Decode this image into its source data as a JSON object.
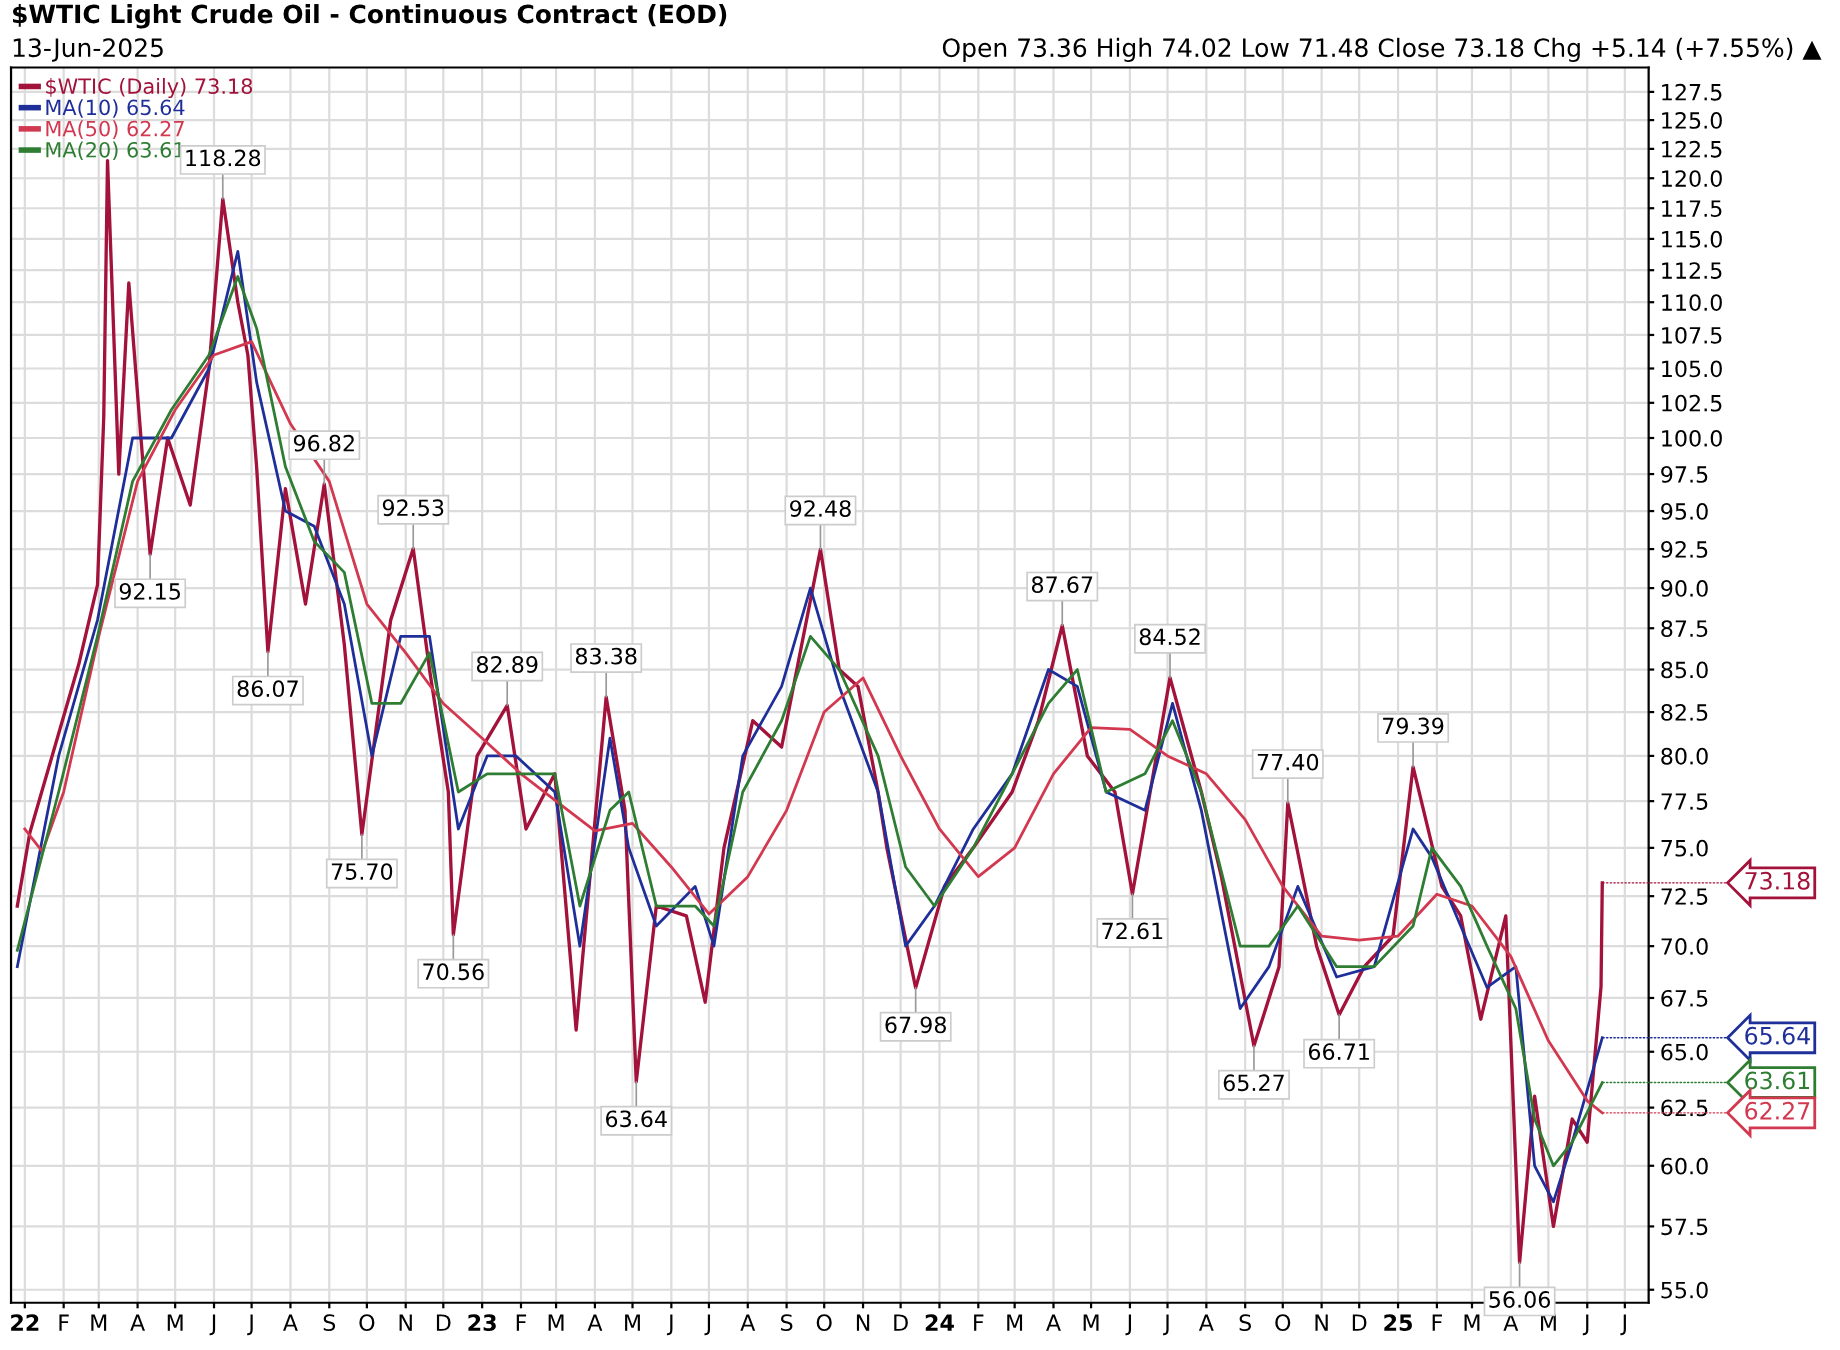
{
  "chart_data": {
    "type": "line",
    "title": "$WTIC Light Crude Oil - Continuous Contract (EOD)",
    "subtitle": "13-Jun-2025",
    "log": "y",
    "grid": true,
    "legend": "top left",
    "marker": "none",
    "line_style": "solid",
    "xlim": [
      "2021-12-21",
      "2025-07-20"
    ],
    "ylim": [
      54.5,
      129.7
    ],
    "yticks": [
      {
        "value": 55,
        "label": "55.0"
      },
      {
        "value": 57.5,
        "label": "57.5"
      },
      {
        "value": 60,
        "label": "60.0"
      },
      {
        "value": 62.5,
        "label": "62.5"
      },
      {
        "value": 65,
        "label": "65.0"
      },
      {
        "value": 67.5,
        "label": "67.5"
      },
      {
        "value": 70,
        "label": "70.0"
      },
      {
        "value": 72.5,
        "label": "72.5"
      },
      {
        "value": 75,
        "label": "75.0"
      },
      {
        "value": 77.5,
        "label": "77.5"
      },
      {
        "value": 80,
        "label": "80.0"
      },
      {
        "value": 82.5,
        "label": "82.5"
      },
      {
        "value": 85,
        "label": "85.0"
      },
      {
        "value": 87.5,
        "label": "87.5"
      },
      {
        "value": 90,
        "label": "90.0"
      },
      {
        "value": 92.5,
        "label": "92.5"
      },
      {
        "value": 95,
        "label": "95.0"
      },
      {
        "value": 97.5,
        "label": "97.5"
      },
      {
        "value": 100,
        "label": "100.0"
      },
      {
        "value": 102.5,
        "label": "102.5"
      },
      {
        "value": 105,
        "label": "105.0"
      },
      {
        "value": 107.5,
        "label": "107.5"
      },
      {
        "value": 110,
        "label": "110.0"
      },
      {
        "value": 112.5,
        "label": "112.5"
      },
      {
        "value": 115,
        "label": "115.0"
      },
      {
        "value": 117.5,
        "label": "117.5"
      },
      {
        "value": 120,
        "label": "120.0"
      },
      {
        "value": 122.5,
        "label": "122.5"
      },
      {
        "value": 125,
        "label": "125.0"
      },
      {
        "value": 127.5,
        "label": "127.5"
      }
    ],
    "xticks": [
      {
        "value": "2022-01-01",
        "label": "22"
      },
      {
        "value": "2022-02-01",
        "label": "F"
      },
      {
        "value": "2022-03-01",
        "label": "M"
      },
      {
        "value": "2022-04-01",
        "label": "A"
      },
      {
        "value": "2022-05-01",
        "label": "M"
      },
      {
        "value": "2022-06-01",
        "label": "J"
      },
      {
        "value": "2022-07-01",
        "label": "J"
      },
      {
        "value": "2022-08-01",
        "label": "A"
      },
      {
        "value": "2022-09-01",
        "label": "S"
      },
      {
        "value": "2022-10-01",
        "label": "O"
      },
      {
        "value": "2022-11-01",
        "label": "N"
      },
      {
        "value": "2022-12-01",
        "label": "D"
      },
      {
        "value": "2023-01-01",
        "label": "23"
      },
      {
        "value": "2023-02-01",
        "label": "F"
      },
      {
        "value": "2023-03-01",
        "label": "M"
      },
      {
        "value": "2023-04-01",
        "label": "A"
      },
      {
        "value": "2023-05-01",
        "label": "M"
      },
      {
        "value": "2023-06-01",
        "label": "J"
      },
      {
        "value": "2023-07-01",
        "label": "J"
      },
      {
        "value": "2023-08-01",
        "label": "A"
      },
      {
        "value": "2023-09-01",
        "label": "S"
      },
      {
        "value": "2023-10-01",
        "label": "O"
      },
      {
        "value": "2023-11-01",
        "label": "N"
      },
      {
        "value": "2023-12-01",
        "label": "D"
      },
      {
        "value": "2024-01-01",
        "label": "24"
      },
      {
        "value": "2024-02-01",
        "label": "F"
      },
      {
        "value": "2024-03-01",
        "label": "M"
      },
      {
        "value": "2024-04-01",
        "label": "A"
      },
      {
        "value": "2024-05-01",
        "label": "M"
      },
      {
        "value": "2024-06-01",
        "label": "J"
      },
      {
        "value": "2024-07-01",
        "label": "J"
      },
      {
        "value": "2024-08-01",
        "label": "A"
      },
      {
        "value": "2024-09-01",
        "label": "S"
      },
      {
        "value": "2024-10-01",
        "label": "O"
      },
      {
        "value": "2024-11-01",
        "label": "N"
      },
      {
        "value": "2024-12-01",
        "label": "D"
      },
      {
        "value": "2025-01-01",
        "label": "25"
      },
      {
        "value": "2025-02-01",
        "label": "F"
      },
      {
        "value": "2025-03-01",
        "label": "M"
      },
      {
        "value": "2025-04-01",
        "label": "A"
      },
      {
        "value": "2025-05-01",
        "label": "M"
      },
      {
        "value": "2025-06-01",
        "label": "J"
      },
      {
        "value": "2025-07-01",
        "label": "J"
      }
    ],
    "series": [
      {
        "name": "$WTIC (Daily) 73.18",
        "color": "#a3123a",
        "x": [
          "2021-12-26",
          "2022-01-05",
          "2022-02-13",
          "2022-02-28",
          "2022-03-05",
          "2022-03-08",
          "2022-03-17",
          "2022-03-25",
          "2022-04-11",
          "2022-04-25",
          "2022-05-13",
          "2022-05-28",
          "2022-06-08",
          "2022-06-20",
          "2022-06-28",
          "2022-07-05",
          "2022-07-14",
          "2022-07-28",
          "2022-08-13",
          "2022-08-28",
          "2022-09-13",
          "2022-09-27",
          "2022-10-20",
          "2022-11-07",
          "2022-11-20",
          "2022-12-05",
          "2022-12-09",
          "2022-12-28",
          "2023-01-21",
          "2023-02-05",
          "2023-02-28",
          "2023-03-13",
          "2023-03-17",
          "2023-04-10",
          "2023-04-25",
          "2023-05-04",
          "2023-05-20",
          "2023-06-13",
          "2023-06-28",
          "2023-07-13",
          "2023-08-05",
          "2023-08-28",
          "2023-09-28",
          "2023-10-13",
          "2023-10-28",
          "2023-11-13",
          "2023-11-20",
          "2023-12-13",
          "2024-01-05",
          "2024-01-28",
          "2024-02-28",
          "2024-03-20",
          "2024-04-08",
          "2024-04-28",
          "2024-05-20",
          "2024-06-03",
          "2024-07-03",
          "2024-07-28",
          "2024-08-13",
          "2024-09-08",
          "2024-09-28",
          "2024-10-05",
          "2024-10-28",
          "2024-11-15",
          "2024-12-05",
          "2024-12-28",
          "2025-01-13",
          "2025-02-05",
          "2025-02-20",
          "2025-03-08",
          "2025-03-28",
          "2025-04-05",
          "2025-04-08",
          "2025-04-20",
          "2025-05-05",
          "2025-05-20",
          "2025-06-01",
          "2025-06-12",
          "2025-06-13"
        ],
        "values": [
          72,
          75.8,
          85.3,
          90.2,
          101.5,
          121.5,
          97.5,
          111.5,
          92.15,
          100,
          95.4,
          105,
          118.28,
          110,
          106,
          98,
          86.07,
          96.5,
          89,
          96.82,
          86.5,
          75.7,
          88,
          92.53,
          85,
          78,
          70.56,
          80,
          82.89,
          76,
          79,
          69,
          66,
          83.38,
          77,
          63.64,
          72,
          71.5,
          67.3,
          75,
          82,
          80.5,
          92.48,
          85,
          84,
          78,
          75,
          67.98,
          73,
          75,
          78,
          82,
          87.67,
          80,
          78,
          72.61,
          84.52,
          78,
          73.5,
          65.27,
          69,
          77.4,
          70,
          66.71,
          69,
          70.5,
          79.39,
          73,
          71.5,
          66.5,
          71.5,
          60,
          56.06,
          63,
          57.5,
          62,
          61,
          68.04,
          73.18
        ]
      },
      {
        "name": "MA(10) 65.64",
        "color": "#1f2f9a",
        "x": [
          "2021-12-26",
          "2022-01-28",
          "2022-02-28",
          "2022-03-28",
          "2022-04-28",
          "2022-05-28",
          "2022-06-20",
          "2022-07-05",
          "2022-07-28",
          "2022-08-20",
          "2022-09-13",
          "2022-10-05",
          "2022-10-28",
          "2022-11-20",
          "2022-12-13",
          "2023-01-05",
          "2023-01-28",
          "2023-02-28",
          "2023-03-20",
          "2023-04-13",
          "2023-04-28",
          "2023-05-20",
          "2023-06-20",
          "2023-07-05",
          "2023-07-28",
          "2023-08-28",
          "2023-09-20",
          "2023-10-13",
          "2023-11-13",
          "2023-12-05",
          "2023-12-28",
          "2024-01-28",
          "2024-02-28",
          "2024-03-28",
          "2024-04-20",
          "2024-05-13",
          "2024-06-13",
          "2024-07-05",
          "2024-07-28",
          "2024-08-28",
          "2024-09-20",
          "2024-10-13",
          "2024-11-13",
          "2024-12-13",
          "2025-01-13",
          "2025-01-28",
          "2025-02-20",
          "2025-03-13",
          "2025-04-05",
          "2025-04-20",
          "2025-05-05",
          "2025-05-20",
          "2025-06-13"
        ],
        "values": [
          69,
          80,
          88,
          100,
          100,
          105,
          114,
          104,
          95,
          94,
          89,
          80,
          87,
          87,
          76,
          80,
          80,
          78,
          70,
          81,
          75,
          71,
          73,
          70,
          80,
          84,
          90,
          84,
          78,
          70,
          72,
          76,
          79,
          85,
          84,
          78,
          77,
          83,
          77,
          67,
          69,
          73,
          68.5,
          69,
          76,
          74.5,
          71,
          68,
          69,
          60,
          58.5,
          61,
          65.64
        ]
      },
      {
        "name": "MA(50) 62.27",
        "color": "#d2384f",
        "x": [
          "2022-01-01",
          "2022-01-15",
          "2022-02-01",
          "2022-03-01",
          "2022-04-01",
          "2022-05-01",
          "2022-06-01",
          "2022-07-01",
          "2022-08-01",
          "2022-09-01",
          "2022-10-01",
          "2022-11-01",
          "2022-12-01",
          "2023-01-01",
          "2023-02-01",
          "2023-03-01",
          "2023-04-01",
          "2023-05-01",
          "2023-06-01",
          "2023-07-01",
          "2023-08-01",
          "2023-09-01",
          "2023-10-01",
          "2023-11-01",
          "2023-12-01",
          "2024-01-01",
          "2024-02-01",
          "2024-03-01",
          "2024-04-01",
          "2024-05-01",
          "2024-06-01",
          "2024-07-01",
          "2024-08-01",
          "2024-09-01",
          "2024-10-01",
          "2024-11-01",
          "2024-12-01",
          "2025-01-01",
          "2025-02-01",
          "2025-03-01",
          "2025-04-01",
          "2025-05-01",
          "2025-06-01",
          "2025-06-13"
        ],
        "values": [
          76,
          74.8,
          78,
          87,
          97,
          102,
          106,
          107,
          101,
          97,
          89,
          86,
          83,
          81,
          79,
          77.5,
          75.9,
          76.3,
          74,
          71.6,
          73.5,
          77,
          82.5,
          84.5,
          80,
          76,
          73.5,
          75,
          79,
          81.6,
          81.5,
          80,
          79,
          76.5,
          73,
          70.5,
          70.3,
          70.5,
          72.6,
          72,
          69.5,
          65.5,
          62.8,
          62.27
        ]
      },
      {
        "name": "MA(20) 63.61",
        "color": "#2e7d32",
        "x": [
          "2021-12-26",
          "2022-01-28",
          "2022-02-28",
          "2022-03-28",
          "2022-04-28",
          "2022-05-28",
          "2022-06-20",
          "2022-07-05",
          "2022-07-28",
          "2022-08-20",
          "2022-09-13",
          "2022-10-05",
          "2022-10-28",
          "2022-11-20",
          "2022-12-13",
          "2023-01-05",
          "2023-01-28",
          "2023-02-28",
          "2023-03-20",
          "2023-04-13",
          "2023-04-28",
          "2023-05-20",
          "2023-06-20",
          "2023-07-05",
          "2023-07-28",
          "2023-08-28",
          "2023-09-20",
          "2023-10-13",
          "2023-11-13",
          "2023-12-05",
          "2023-12-28",
          "2024-01-28",
          "2024-02-28",
          "2024-03-28",
          "2024-04-20",
          "2024-05-13",
          "2024-06-13",
          "2024-07-05",
          "2024-07-28",
          "2024-08-28",
          "2024-09-20",
          "2024-10-13",
          "2024-11-13",
          "2024-12-13",
          "2025-01-13",
          "2025-01-28",
          "2025-02-20",
          "2025-03-13",
          "2025-04-05",
          "2025-04-20",
          "2025-05-05",
          "2025-05-20",
          "2025-06-13"
        ],
        "values": [
          69.8,
          78,
          87,
          97,
          102,
          106,
          112,
          108,
          98,
          93,
          91,
          83,
          83,
          86,
          78,
          79,
          79,
          79,
          72,
          77,
          78,
          72,
          72,
          71,
          78,
          82,
          87,
          85,
          80,
          74,
          72,
          75,
          79,
          83,
          85,
          78,
          79,
          82,
          78,
          70,
          70,
          72,
          69,
          69,
          71,
          75,
          73,
          70,
          67,
          62,
          60,
          61,
          63.61
        ]
      }
    ],
    "annotations": [
      "Open 73.36 High 74.02 Low 71.48 Close 73.18 Chg +5.14 (+7.55%) ▲",
      {
        "text": "118.28",
        "x": "2022-06-08",
        "y": 118.28
      },
      {
        "text": "92.15",
        "x": "2022-04-11",
        "y": 92.15
      },
      {
        "text": "86.07",
        "x": "2022-07-14",
        "y": 86.07
      },
      {
        "text": "96.82",
        "x": "2022-08-28",
        "y": 96.82
      },
      {
        "text": "75.70",
        "x": "2022-09-27",
        "y": 75.7
      },
      {
        "text": "92.53",
        "x": "2022-11-07",
        "y": 92.53
      },
      {
        "text": "70.56",
        "x": "2022-12-09",
        "y": 70.56
      },
      {
        "text": "82.89",
        "x": "2023-01-21",
        "y": 82.89
      },
      {
        "text": "83.38",
        "x": "2023-04-10",
        "y": 83.38
      },
      {
        "text": "63.64",
        "x": "2023-05-04",
        "y": 63.64
      },
      {
        "text": "92.48",
        "x": "2023-09-28",
        "y": 92.48
      },
      {
        "text": "67.98",
        "x": "2023-12-13",
        "y": 67.98
      },
      {
        "text": "87.67",
        "x": "2024-04-08",
        "y": 87.67
      },
      {
        "text": "72.61",
        "x": "2024-06-03",
        "y": 72.61
      },
      {
        "text": "84.52",
        "x": "2024-07-03",
        "y": 84.52
      },
      {
        "text": "65.27",
        "x": "2024-09-08",
        "y": 65.27
      },
      {
        "text": "77.40",
        "x": "2024-10-05",
        "y": 77.4
      },
      {
        "text": "66.71",
        "x": "2024-11-15",
        "y": 66.71
      },
      {
        "text": "79.39",
        "x": "2025-01-13",
        "y": 79.39
      },
      {
        "text": "56.06",
        "x": "2025-04-08",
        "y": 56.06
      },
      {
        "text": "73.18",
        "x": "2025-06-13",
        "y": 73.18
      },
      {
        "text": "65.64",
        "x": "2025-06-13",
        "y": 65.64
      },
      {
        "text": "63.61",
        "x": "2025-06-13",
        "y": 63.61
      },
      {
        "text": "62.27",
        "x": "2025-06-13",
        "y": 62.27
      }
    ]
  }
}
